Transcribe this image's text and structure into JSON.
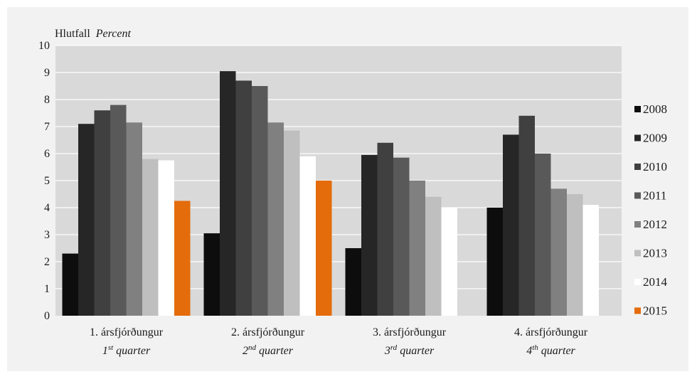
{
  "chart_data": {
    "type": "bar",
    "ylabel": "Hlutfall",
    "ylabel_italic": "Percent",
    "ylim": [
      0,
      10
    ],
    "yticks": [
      "0",
      "1",
      "2",
      "3",
      "4",
      "5",
      "6",
      "7",
      "8",
      "9",
      "10"
    ],
    "grid": true,
    "legend_position": "right",
    "categories": [
      {
        "main": "1. ársfjórðungur",
        "sub_num": "1",
        "sub_sup": "st",
        "sub_rest": " quarter"
      },
      {
        "main": "2. ársfjórðungur",
        "sub_num": "2",
        "sub_sup": "nd",
        "sub_rest": " quarter"
      },
      {
        "main": "3. ársfjórðungur",
        "sub_num": "3",
        "sub_sup": "rd",
        "sub_rest": " quarter"
      },
      {
        "main": "4. ársfjórðungur",
        "sub_num": "4",
        "sub_sup": "th",
        "sub_rest": " quarter"
      }
    ],
    "series": [
      {
        "name": "2008",
        "color": "#0d0d0d",
        "values": [
          2.3,
          3.05,
          2.5,
          4.0
        ]
      },
      {
        "name": "2009",
        "color": "#262626",
        "values": [
          7.1,
          9.05,
          5.95,
          6.7
        ]
      },
      {
        "name": "2010",
        "color": "#404040",
        "values": [
          7.6,
          8.7,
          6.4,
          7.4
        ]
      },
      {
        "name": "2011",
        "color": "#595959",
        "values": [
          7.8,
          8.5,
          5.85,
          6.0
        ]
      },
      {
        "name": "2012",
        "color": "#808080",
        "values": [
          7.15,
          7.15,
          5.0,
          4.7
        ]
      },
      {
        "name": "2013",
        "color": "#bfbfbf",
        "values": [
          5.8,
          6.85,
          4.4,
          4.5
        ]
      },
      {
        "name": "2014",
        "color": "#ffffff",
        "values": [
          5.75,
          5.9,
          4.0,
          4.1
        ]
      },
      {
        "name": "2015",
        "color": "#e46c0a",
        "values": [
          4.25,
          5.0,
          null,
          null
        ]
      }
    ]
  }
}
